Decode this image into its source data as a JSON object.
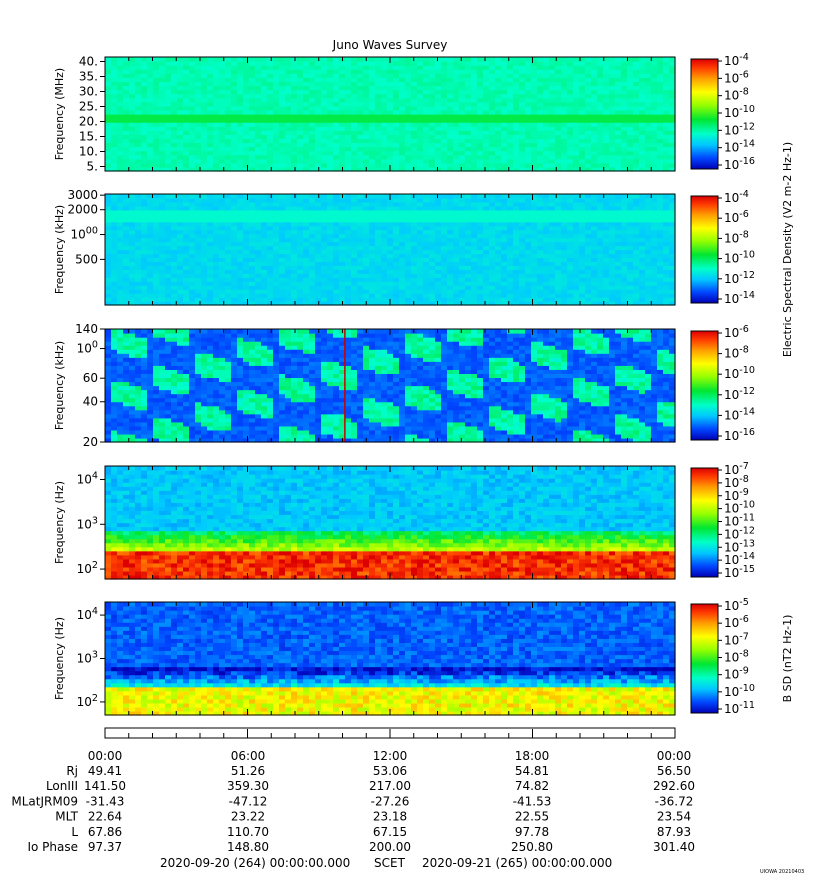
{
  "title": "Juno Waves Survey",
  "chart_data": [
    {
      "type": "heatmap",
      "panel": "HFR high",
      "ylabel": "Frequency (MHz)",
      "yticks": [
        "40.",
        "35.",
        "30.",
        "25.",
        "20.",
        "15.",
        "10.",
        "5."
      ],
      "ytick_values": [
        40,
        35,
        30,
        25,
        20,
        15,
        10,
        5
      ],
      "ylim": [
        3.5,
        41.5
      ],
      "yscale": "linear",
      "colorbar": {
        "labels": [
          "10-4",
          "10-6",
          "10-8",
          "10-10",
          "10-12",
          "10-14",
          "10-16"
        ],
        "range_exp": [
          -17,
          -4
        ]
      },
      "colorbar_title": "",
      "features": [
        {
          "kind": "band",
          "center": 21,
          "level": -11.4
        }
      ],
      "background_level": -12.6
    },
    {
      "type": "heatmap",
      "panel": "HFR low",
      "ylabel": "Frequency (kHz)",
      "yticks": [
        "3000",
        "2000",
        "1000",
        "500"
      ],
      "ytick_values": [
        3000,
        2000,
        1000,
        500
      ],
      "ylim": [
        140,
        3100
      ],
      "yscale": "log",
      "colorbar": {
        "labels": [
          "10-4",
          "10-6",
          "10-8",
          "10-10",
          "10-12",
          "10-14"
        ],
        "range_exp": [
          -15,
          -3
        ]
      },
      "colorbar_title": "Electric Spectral Density (V2 m-2 Hz-1)",
      "features": [
        {
          "kind": "band",
          "center": 1650,
          "level": -11.3
        }
      ],
      "background_level": -12.0
    },
    {
      "type": "heatmap",
      "panel": "LFR high",
      "ylabel": "Frequency (kHz)",
      "yticks": [
        "140",
        "100",
        "60",
        "40",
        "20"
      ],
      "ytick_values": [
        140,
        100,
        60,
        40,
        20
      ],
      "ylim": [
        20,
        140
      ],
      "yscale": "log",
      "colorbar": {
        "labels": [
          "10-6",
          "10-8",
          "10-10",
          "10-12",
          "10-14",
          "10-16"
        ],
        "range_exp": [
          -16,
          -6
        ]
      },
      "colorbar_title": "",
      "features": [
        {
          "kind": "emission",
          "level": -12.5
        },
        {
          "kind": "spike",
          "time_hours": 10.1
        }
      ],
      "background_level": -14.8
    },
    {
      "type": "heatmap",
      "panel": "LFR low",
      "ylabel": "Frequency (Hz)",
      "yticks": [
        "104",
        "103",
        "102"
      ],
      "ytick_values": [
        10000,
        1000,
        100
      ],
      "ylim": [
        60,
        20000
      ],
      "yscale": "log",
      "colorbar": {
        "labels": [
          "10-7",
          "10-8",
          "10-9",
          "10-10",
          "10-11",
          "10-12",
          "10-13",
          "10-14",
          "10-15"
        ],
        "range_exp": [
          -15,
          -7
        ]
      },
      "colorbar_title": "",
      "features": [
        {
          "kind": "band",
          "center": 180,
          "level": -7.5
        }
      ],
      "background_level": -13.2
    },
    {
      "type": "heatmap",
      "panel": "Magnetic",
      "ylabel": "Frequency (Hz)",
      "yticks": [
        "104",
        "103",
        "102"
      ],
      "ytick_values": [
        10000,
        1000,
        100
      ],
      "ylim": [
        50,
        20000
      ],
      "yscale": "log",
      "colorbar": {
        "labels": [
          "10-5",
          "10-6",
          "10-7",
          "10-8",
          "10-9",
          "10-10",
          "10-11"
        ],
        "range_exp": [
          -11,
          -4.5
        ]
      },
      "colorbar_title": "B SD (nT2 Hz-1)",
      "features": [
        {
          "kind": "band",
          "center": 140,
          "level": -6.5
        }
      ],
      "background_level": -10.2
    }
  ],
  "ephemeris": {
    "times": [
      "00:00",
      "06:00",
      "12:00",
      "18:00",
      "00:00"
    ],
    "rows": [
      {
        "label": "Rj",
        "values": [
          "49.41",
          "51.26",
          "53.06",
          "54.81",
          "56.50"
        ]
      },
      {
        "label": "LonIII",
        "values": [
          "141.50",
          "359.30",
          "217.00",
          "74.82",
          "292.60"
        ]
      },
      {
        "label": "MLatJRM09",
        "values": [
          "-31.43",
          "-47.12",
          "-27.26",
          "-41.53",
          "-36.72"
        ]
      },
      {
        "label": "MLT",
        "values": [
          "22.64",
          "23.22",
          "23.18",
          "22.55",
          "23.54"
        ]
      },
      {
        "label": "L",
        "values": [
          "67.86",
          "110.70",
          "67.15",
          "97.78",
          "87.93"
        ]
      },
      {
        "label": "Io Phase",
        "values": [
          "97.37",
          "148.80",
          "200.00",
          "250.80",
          "301.40"
        ]
      }
    ]
  },
  "footer": {
    "start": "2020-09-20 (264) 00:00:00.000",
    "scet": "SCET",
    "end": "2020-09-21 (265) 00:00:00.000",
    "stamp": "UIOWA 20210403"
  }
}
